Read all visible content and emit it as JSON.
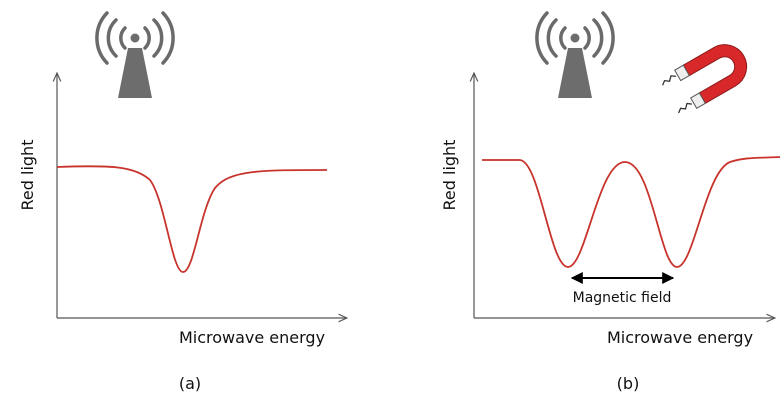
{
  "panels": [
    {
      "y_label": "Red light",
      "x_label": "Microwave energy",
      "caption": "(a)"
    },
    {
      "y_label": "Red light",
      "x_label": "Microwave energy",
      "caption": "(b)",
      "annotation": "Magnetic field"
    }
  ]
}
